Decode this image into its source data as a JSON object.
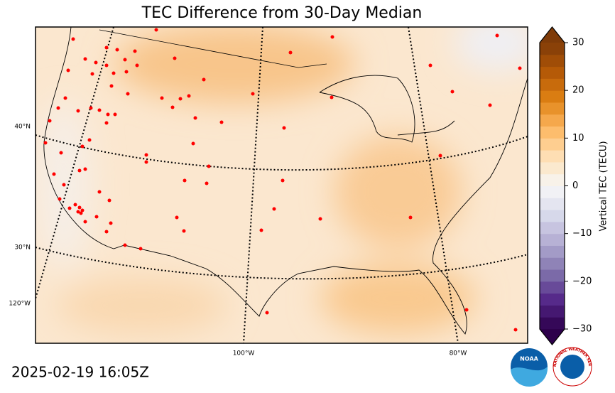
{
  "map": {
    "title": "TEC Difference from 30-Day Median",
    "timestamp": "2025-02-19 16:05Z",
    "lat_labels": [
      "40°N",
      "30°N",
      "120°W"
    ],
    "lon_labels": [
      "100°W",
      "80°W"
    ],
    "logos": [
      "NOAA",
      "NATIONAL WEATHER SERVICE"
    ],
    "colorbar": {
      "label": "Vertical TEC (TECU)",
      "range": [
        -30,
        30
      ],
      "bands": 24,
      "colors": [
        "#2d004b",
        "#542788",
        "#8073ac",
        "#b2abd2",
        "#d8daeb",
        "#f7f7f7",
        "#fee0b6",
        "#fdb863",
        "#e08214",
        "#b35806",
        "#7f3b08"
      ],
      "ticks": [
        30,
        20,
        10,
        0,
        {
          "value": -10,
          "label": "−10"
        },
        {
          "value": -20,
          "label": "−20"
        },
        {
          "value": -30,
          "label": "−30"
        }
      ]
    }
  }
}
